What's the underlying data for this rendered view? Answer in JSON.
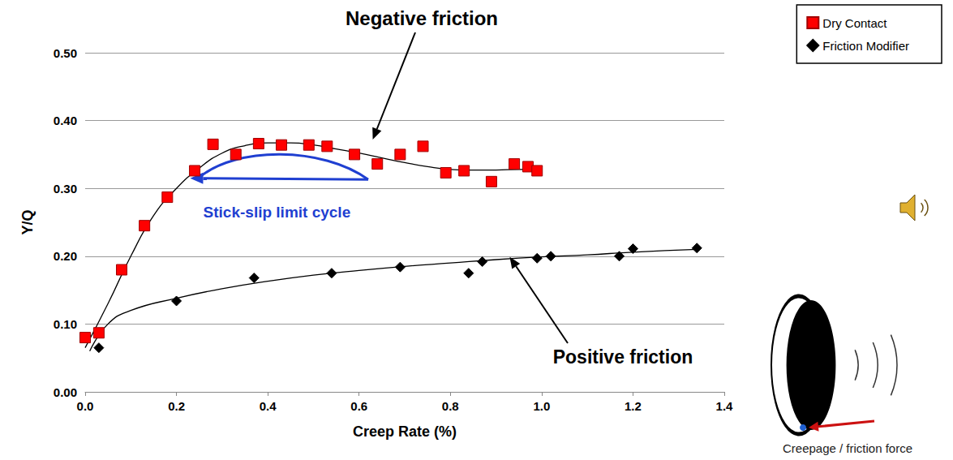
{
  "chart_data": {
    "type": "scatter",
    "x_label": "Creep Rate (%)",
    "y_label": "Y/Q",
    "xlim": [
      0,
      1.4
    ],
    "xticks": [
      {
        "value": 0,
        "label": "0.0"
      },
      0.2,
      0.4,
      0.6,
      0.8,
      {
        "value": 1,
        "label": "1.0"
      },
      1.2,
      1.4
    ],
    "ylim": [
      0,
      0.5
    ],
    "yticks": [
      {
        "value": 0,
        "label": "0.00"
      },
      {
        "value": 0.1,
        "label": "0.10"
      },
      {
        "value": 0.2,
        "label": "0.20"
      },
      {
        "value": 0.3,
        "label": "0.30"
      },
      {
        "value": 0.4,
        "label": "0.40"
      },
      {
        "value": 0.5,
        "label": "0.50"
      }
    ],
    "grid": true,
    "legend": "top-right",
    "series": [
      {
        "name": "Dry Contact",
        "color": "#ff0000",
        "marker": "square",
        "x": [
          0,
          0.03,
          0.08,
          0.13,
          0.18,
          0.24,
          0.28,
          0.33,
          0.38,
          0.43,
          0.49,
          0.53,
          0.59,
          0.64,
          0.69,
          0.74,
          0.79,
          0.83,
          0.89,
          0.94,
          0.97,
          0.99
        ],
        "values": [
          0.08,
          0.087,
          0.18,
          0.245,
          0.287,
          0.326,
          0.365,
          0.35,
          0.366,
          0.364,
          0.364,
          0.362,
          0.35,
          0.336,
          0.35,
          0.362,
          0.323,
          0.326,
          0.31,
          0.336,
          0.332,
          0.326
        ],
        "trend": {
          "type": "line",
          "color": "#000000",
          "line_style": "solid",
          "x": [
            0,
            0.05,
            0.1,
            0.15,
            0.2,
            0.25,
            0.3,
            0.35,
            0.4,
            0.45,
            0.5,
            0.55,
            0.6,
            0.65,
            0.7,
            0.75,
            0.8,
            0.85,
            0.9,
            0.95,
            1.0
          ],
          "values": [
            0.065,
            0.13,
            0.2,
            0.26,
            0.3,
            0.33,
            0.352,
            0.363,
            0.367,
            0.367,
            0.364,
            0.358,
            0.352,
            0.345,
            0.338,
            0.332,
            0.328,
            0.327,
            0.327,
            0.328,
            0.328
          ]
        }
      },
      {
        "name": "Friction Modifier",
        "color": "#000000",
        "marker": "diamond",
        "x": [
          0.03,
          0.2,
          0.37,
          0.54,
          0.69,
          0.84,
          0.87,
          0.99,
          1.02,
          1.17,
          1.2,
          1.34
        ],
        "values": [
          0.065,
          0.134,
          0.168,
          0.175,
          0.184,
          0.175,
          0.192,
          0.197,
          0.2,
          0.2,
          0.211,
          0.212
        ],
        "trend": {
          "type": "line",
          "color": "#000000",
          "line_style": "solid",
          "x": [
            0.01,
            0.05,
            0.1,
            0.2,
            0.3,
            0.4,
            0.5,
            0.6,
            0.7,
            0.8,
            0.9,
            1.0,
            1.1,
            1.2,
            1.34
          ],
          "values": [
            0.06,
            0.1,
            0.12,
            0.138,
            0.152,
            0.163,
            0.172,
            0.179,
            0.185,
            0.19,
            0.195,
            0.199,
            0.202,
            0.206,
            0.21
          ]
        }
      }
    ],
    "annotations": [
      {
        "text": "Negative friction",
        "color": "#000000"
      },
      {
        "text": "Positive friction",
        "color": "#000000"
      },
      {
        "text": "Stick-slip limit cycle",
        "color": "#1f3fd1"
      },
      {
        "text": "Creepage / friction force",
        "color": "#222222"
      }
    ]
  }
}
